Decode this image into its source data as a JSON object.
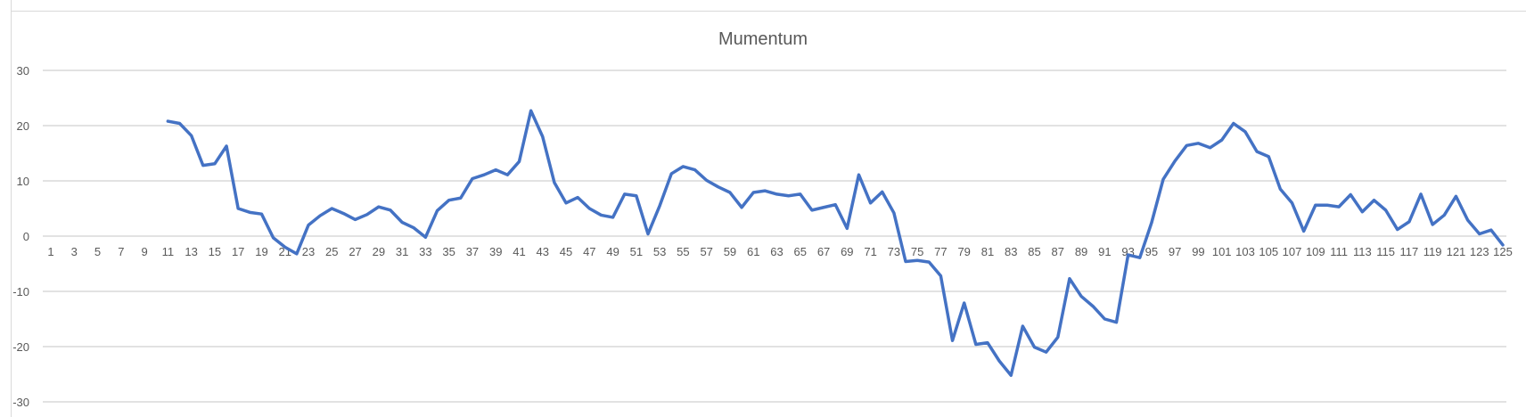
{
  "chart_data": {
    "type": "line",
    "title": "Mumentum",
    "xlabel": "",
    "ylabel": "",
    "ylim": [
      -30,
      30
    ],
    "yticks": [
      30,
      20,
      10,
      0,
      -10,
      -20,
      -30
    ],
    "grid": true,
    "legend": "none",
    "x_start": 1,
    "x_end": 125,
    "x_tick_labels": [
      "1",
      "3",
      "5",
      "7",
      "9",
      "11",
      "13",
      "15",
      "17",
      "19",
      "21",
      "23",
      "25",
      "27",
      "29",
      "31",
      "33",
      "35",
      "37",
      "39",
      "41",
      "43",
      "45",
      "47",
      "49",
      "51",
      "53",
      "55",
      "57",
      "59",
      "61",
      "63",
      "65",
      "67",
      "69",
      "71",
      "73",
      "75",
      "77",
      "79",
      "81",
      "83",
      "85",
      "87",
      "89",
      "91",
      "93",
      "95",
      "97",
      "99",
      "101",
      "103",
      "105",
      "107",
      "109",
      "111",
      "113",
      "115",
      "117",
      "119",
      "121",
      "123",
      "125"
    ],
    "series": [
      {
        "color": "#4472C4",
        "x": [
          11,
          12,
          13,
          14,
          15,
          16,
          17,
          18,
          19,
          20,
          21,
          22,
          23,
          24,
          25,
          26,
          27,
          28,
          29,
          30,
          31,
          32,
          33,
          34,
          35,
          36,
          37,
          38,
          39,
          40,
          41,
          42,
          43,
          44,
          45,
          46,
          47,
          48,
          49,
          50,
          51,
          52,
          53,
          54,
          55,
          56,
          57,
          58,
          59,
          60,
          61,
          62,
          63,
          64,
          65,
          66,
          67,
          68,
          69,
          70,
          71,
          72,
          73,
          74,
          75,
          76,
          77,
          78,
          79,
          80,
          81,
          82,
          83,
          84,
          85,
          86,
          87,
          88,
          89,
          90,
          91,
          92,
          93,
          94,
          95,
          96,
          97,
          98,
          99,
          100,
          101,
          102,
          103,
          104,
          105,
          106,
          107,
          108,
          109,
          110,
          111,
          112,
          113,
          114,
          115,
          116,
          117,
          118,
          119,
          120,
          121,
          122,
          123,
          124,
          125
        ],
        "values": [
          20.8,
          20.4,
          18.2,
          12.8,
          13.1,
          16.3,
          5.0,
          4.3,
          4.0,
          -0.3,
          -2.0,
          -3.2,
          2.0,
          3.7,
          5.0,
          4.1,
          3.0,
          3.9,
          5.3,
          4.7,
          2.5,
          1.5,
          -0.2,
          4.6,
          6.5,
          6.9,
          10.4,
          11.1,
          12.0,
          11.1,
          13.5,
          22.7,
          18.0,
          9.7,
          6.0,
          7.0,
          5.0,
          3.8,
          3.4,
          7.6,
          7.3,
          0.4,
          5.5,
          11.3,
          12.6,
          12.0,
          10.1,
          8.9,
          7.9,
          5.2,
          7.9,
          8.2,
          7.6,
          7.3,
          7.6,
          4.7,
          5.2,
          5.7,
          1.4,
          11.1,
          6.0,
          8.0,
          4.2,
          -4.6,
          -4.4,
          -4.7,
          -7.2,
          -18.9,
          -12.1,
          -19.6,
          -19.3,
          -22.6,
          -25.2,
          -16.3,
          -20.1,
          -21.0,
          -18.3,
          -7.7,
          -10.9,
          -12.7,
          -15.0,
          -15.6,
          -3.4,
          -3.9,
          2.4,
          10.3,
          13.6,
          16.4,
          16.8,
          16.0,
          17.4,
          20.4,
          18.9,
          15.3,
          14.4,
          8.5,
          6.0,
          0.9,
          5.6,
          5.6,
          5.3,
          7.5,
          4.4,
          6.5,
          4.7,
          1.2,
          2.6,
          7.6,
          2.1,
          3.8,
          7.2,
          2.9,
          0.4,
          1.1,
          -1.6
        ]
      }
    ]
  }
}
